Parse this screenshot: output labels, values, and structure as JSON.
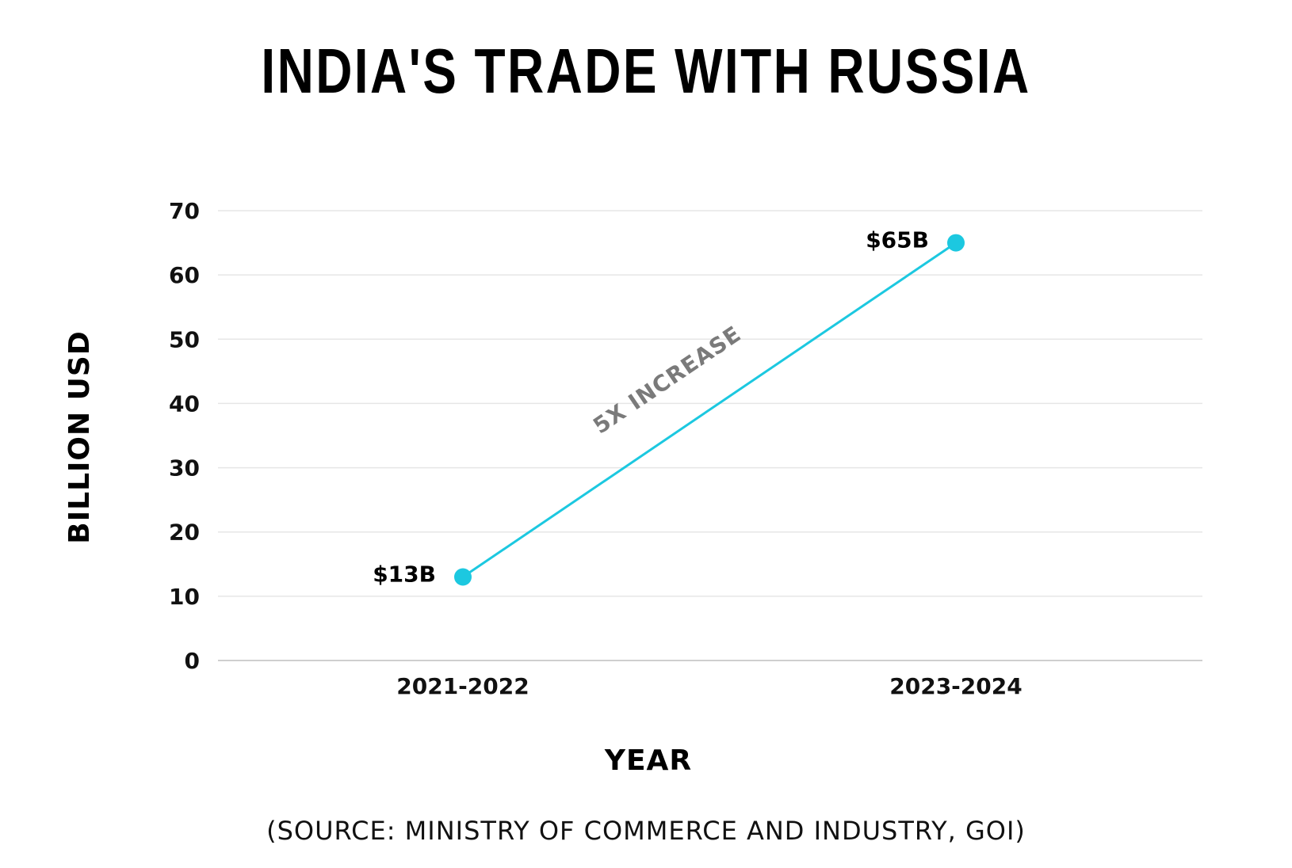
{
  "chart_data": {
    "type": "line",
    "title": "INDIA'S TRADE WITH RUSSIA",
    "xlabel": "YEAR",
    "ylabel": "BILLION USD",
    "categories": [
      "2021-2022",
      "2023-2024"
    ],
    "values": [
      13,
      65
    ],
    "data_labels": [
      "$13B",
      "$65B"
    ],
    "ylim": [
      0,
      70
    ],
    "yticks": [
      0,
      10,
      20,
      30,
      40,
      50,
      60,
      70
    ],
    "annotation": "5X INCREASE",
    "grid": true,
    "line_color": "#1cc8e0",
    "grid_color": "#e6e6e6",
    "axis_color": "#cfcfcf",
    "annotation_color": "#7a7a7a",
    "source": "(SOURCE: MINISTRY OF COMMERCE AND INDUSTRY, GOI)"
  }
}
